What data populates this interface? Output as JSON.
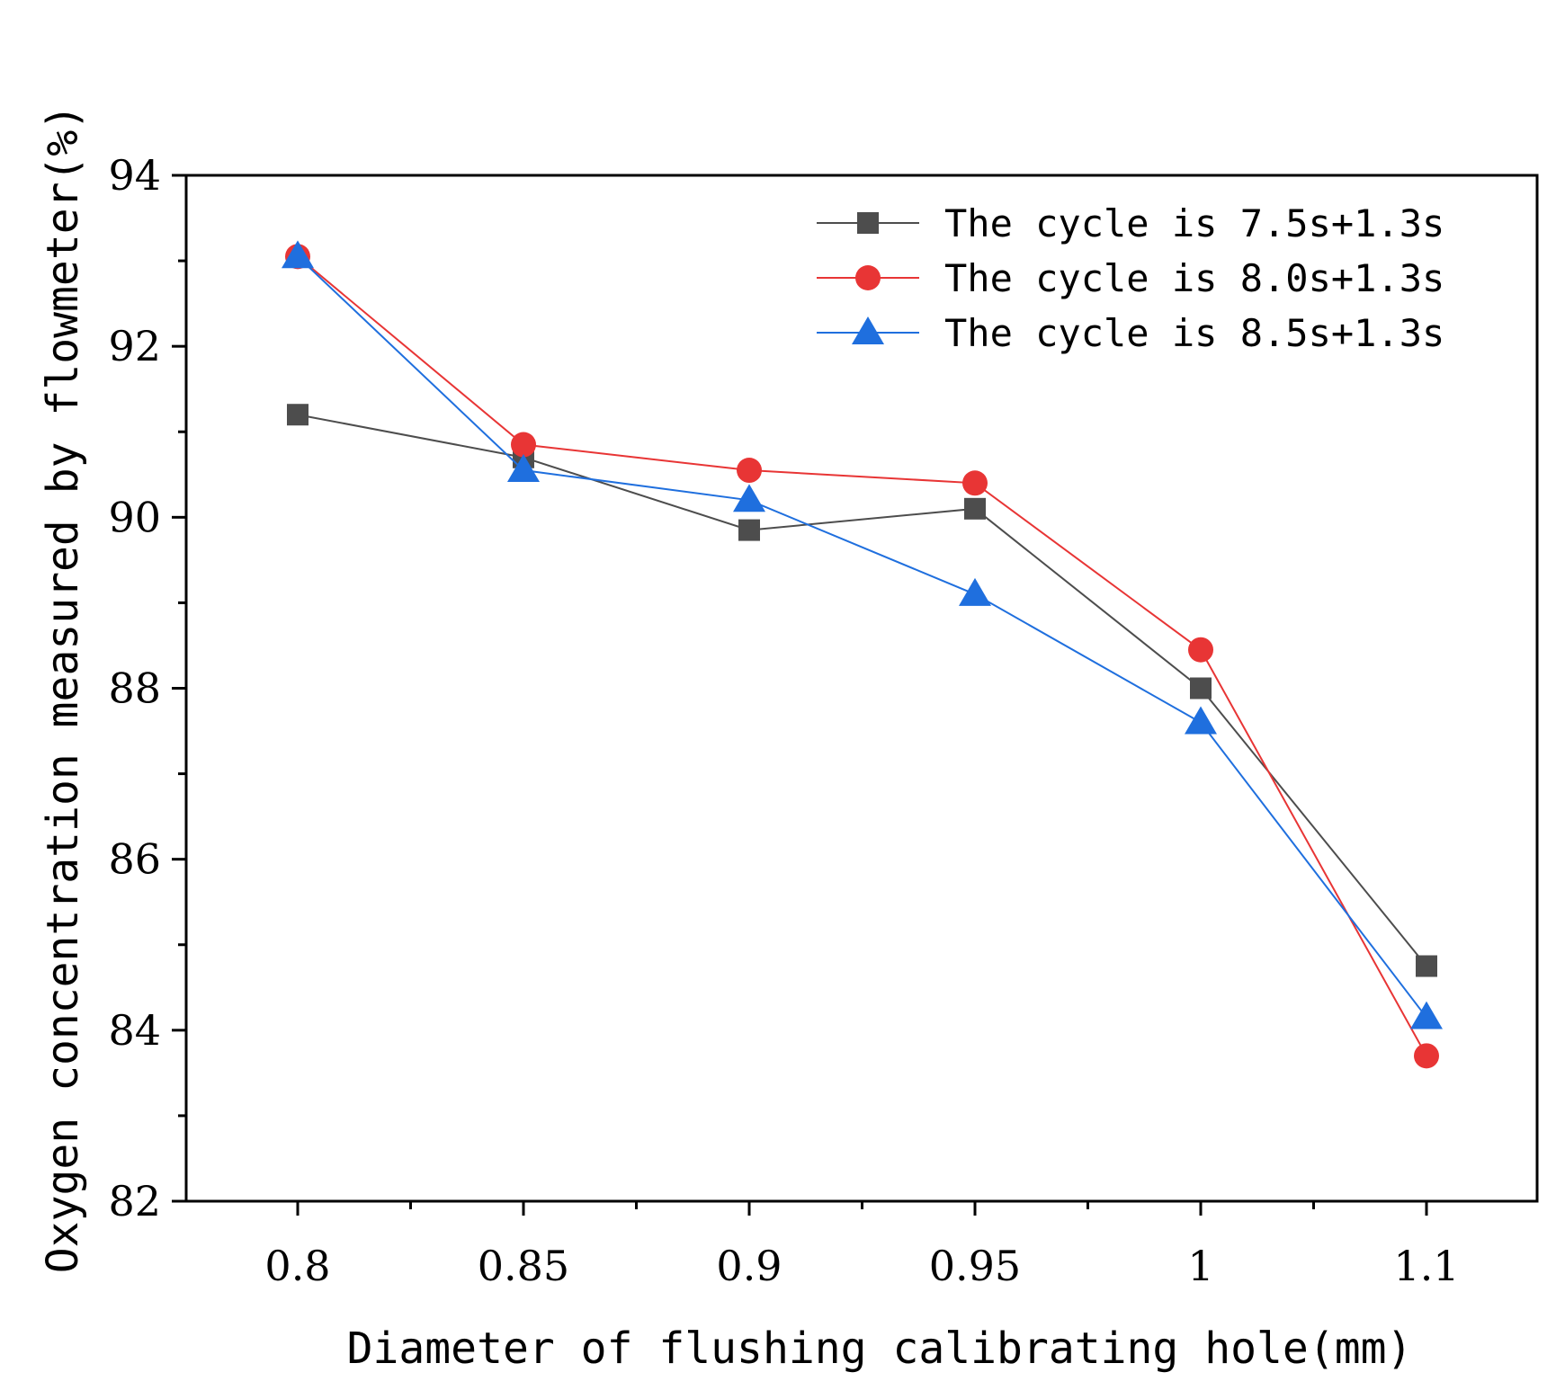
{
  "chart_data": {
    "type": "line",
    "title": "",
    "xlabel": "Diameter of flushing calibrating hole(mm)",
    "ylabel": "Oxygen concentration measured by flowmeter(%)",
    "categories": [
      "0.8",
      "0.85",
      "0.9",
      "0.95",
      "1",
      "1.1"
    ],
    "ylim": [
      82,
      94
    ],
    "yticks": [
      "82",
      "84",
      "86",
      "88",
      "90",
      "92",
      "94"
    ],
    "legend_position": "top-right",
    "series": [
      {
        "name": "The cycle is 7.5s+1.3s",
        "color": "#4d4d4d",
        "marker": "square",
        "values": [
          91.2,
          90.7,
          89.85,
          90.1,
          88.0,
          84.75
        ]
      },
      {
        "name": "The cycle is 8.0s+1.3s",
        "color": "#e83535",
        "marker": "circle",
        "values": [
          93.05,
          90.85,
          90.55,
          90.4,
          88.45,
          83.7
        ]
      },
      {
        "name": "The cycle is 8.5s+1.3s",
        "color": "#1f6fde",
        "marker": "triangle",
        "values": [
          93.05,
          90.55,
          90.2,
          89.1,
          87.6,
          84.15
        ]
      }
    ]
  }
}
